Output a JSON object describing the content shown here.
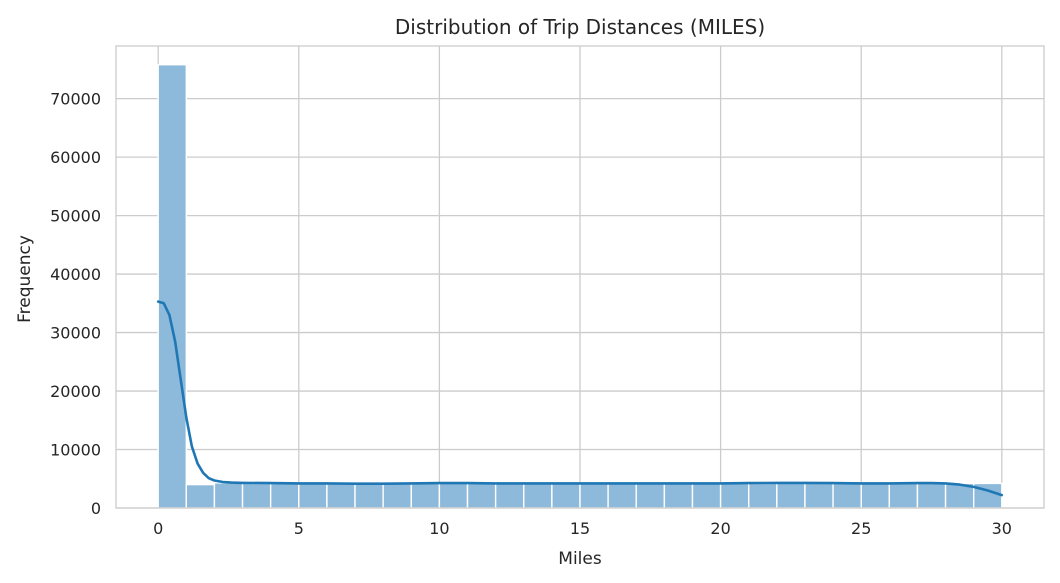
{
  "chart_data": {
    "type": "bar",
    "title": "Distribution of Trip Distances (MILES)",
    "xlabel": "Miles",
    "ylabel": "Frequency",
    "xlim": [
      -1.5,
      31.5
    ],
    "ylim": [
      0,
      79000
    ],
    "x_ticks": [
      0,
      5,
      10,
      15,
      20,
      25,
      30
    ],
    "y_ticks": [
      0,
      10000,
      20000,
      30000,
      40000,
      50000,
      60000,
      70000
    ],
    "grid": true,
    "bar_color": "#8db9db",
    "kde_color": "#1f77b4",
    "bins": {
      "start": 0,
      "width": 1,
      "counts": [
        75800,
        4000,
        4300,
        4200,
        4200,
        4200,
        4150,
        4150,
        4200,
        4200,
        4250,
        4200,
        4200,
        4150,
        4200,
        4200,
        4200,
        4150,
        4200,
        4200,
        4200,
        4200,
        4300,
        4250,
        4200,
        4200,
        4250,
        4300,
        4200,
        4200
      ]
    },
    "series": [
      {
        "type": "kde-line",
        "x": [
          0,
          0.2,
          0.4,
          0.6,
          0.8,
          1.0,
          1.2,
          1.4,
          1.6,
          1.8,
          2.0,
          2.3,
          2.6,
          3.0,
          4,
          5,
          6,
          7,
          8,
          9,
          10,
          11,
          12,
          13,
          14,
          15,
          16,
          17,
          18,
          19,
          20,
          21,
          22,
          23,
          24,
          25,
          26,
          27,
          27.5,
          28,
          28.5,
          29,
          29.5,
          30
        ],
        "y": [
          35300,
          35000,
          33000,
          28500,
          22000,
          15500,
          10500,
          7600,
          6000,
          5100,
          4700,
          4450,
          4350,
          4300,
          4250,
          4200,
          4200,
          4150,
          4150,
          4200,
          4250,
          4250,
          4200,
          4200,
          4200,
          4200,
          4200,
          4200,
          4200,
          4200,
          4200,
          4250,
          4300,
          4300,
          4250,
          4200,
          4200,
          4250,
          4250,
          4200,
          4000,
          3600,
          3000,
          2200
        ]
      }
    ]
  }
}
